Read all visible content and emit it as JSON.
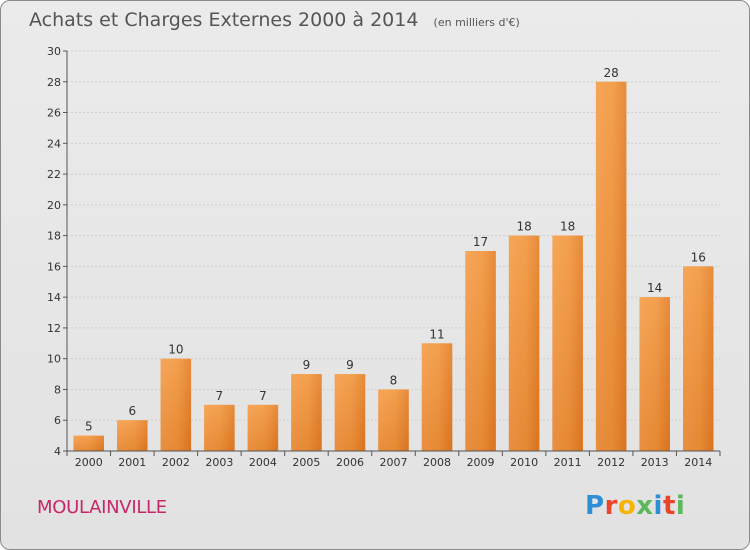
{
  "header": {
    "title": "Achats et Charges Externes 2000 à 2014",
    "subtitle": "(en milliers d'€)"
  },
  "commune": "MOULAINVILLE",
  "logo": {
    "text": "Proxiti",
    "colors": [
      "#2f8fd6",
      "#e8452c",
      "#f4b400",
      "#5cb85c",
      "#2f8fd6",
      "#e8452c",
      "#5cb85c"
    ]
  },
  "chart_data": {
    "type": "bar",
    "categories": [
      "2000",
      "2001",
      "2002",
      "2003",
      "2004",
      "2005",
      "2006",
      "2007",
      "2008",
      "2009",
      "2010",
      "2011",
      "2012",
      "2013",
      "2014"
    ],
    "values": [
      5,
      6,
      10,
      7,
      7,
      9,
      9,
      8,
      11,
      17,
      18,
      18,
      28,
      14,
      16
    ],
    "ylim": [
      4,
      30
    ],
    "yticks": [
      4,
      6,
      8,
      10,
      12,
      14,
      16,
      18,
      20,
      22,
      24,
      26,
      28,
      30
    ],
    "grid": true,
    "bar_color": "#ee8a2e"
  }
}
